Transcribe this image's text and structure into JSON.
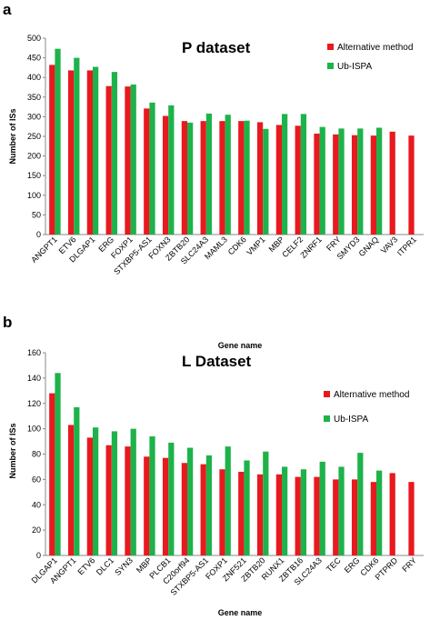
{
  "chart_data": [
    {
      "type": "bar",
      "panel_label": "a",
      "title": "P dataset",
      "xlabel": "Gene name",
      "ylabel": "Number of ISs",
      "ylim": [
        0,
        500
      ],
      "yticks": [
        0,
        50,
        100,
        150,
        200,
        250,
        300,
        350,
        400,
        450,
        500
      ],
      "legend_position": "top-right",
      "categories": [
        "ANGPT1",
        "ETV6",
        "DLGAP1",
        "ERG",
        "FOXP1",
        "STXBP5-AS1",
        "FOXN3",
        "ZBTB20",
        "SLC24A3",
        "MAML3",
        "CDK6",
        "VMP1",
        "MBP",
        "CELF2",
        "ZNRF1",
        "FRY",
        "SMYD3",
        "GNAQ",
        "VAV3",
        "ITPR1"
      ],
      "series": [
        {
          "name": "Alternative method",
          "color": "#e8191f",
          "values": [
            432,
            418,
            418,
            378,
            377,
            321,
            302,
            289,
            289,
            289,
            289,
            286,
            279,
            277,
            257,
            255,
            253,
            252,
            262,
            252
          ]
        },
        {
          "name": "Ub-ISPA",
          "color": "#1db34a",
          "values": [
            473,
            450,
            427,
            414,
            382,
            336,
            329,
            285,
            308,
            305,
            290,
            269,
            307,
            307,
            274,
            270,
            270,
            272,
            null,
            null
          ]
        }
      ]
    },
    {
      "type": "bar",
      "panel_label": "b",
      "title": "L Dataset",
      "xlabel": "Gene name",
      "ylabel": "Number of ISs",
      "ylim": [
        0,
        160
      ],
      "yticks": [
        0,
        20,
        40,
        60,
        80,
        100,
        120,
        140,
        160
      ],
      "legend_position": "top-right",
      "categories": [
        "DLGAP1",
        "ANGPT1",
        "ETV6",
        "DLC1",
        "SYN3",
        "MBP",
        "PLCB1",
        "C20orf94",
        "STXBP5-AS1",
        "FOXP1",
        "ZNF521",
        "ZBTB20",
        "RUNX1",
        "ZBTB16",
        "SLC24A3",
        "TEC",
        "ERG",
        "CDK6",
        "PTPRD",
        "FRY"
      ],
      "series": [
        {
          "name": "Alternative method",
          "color": "#e8191f",
          "values": [
            128,
            103,
            93,
            87,
            86,
            78,
            77,
            73,
            72,
            68,
            66,
            64,
            64,
            62,
            62,
            60,
            60,
            58,
            65,
            58
          ]
        },
        {
          "name": "Ub-ISPA",
          "color": "#1db34a",
          "values": [
            144,
            117,
            101,
            98,
            100,
            94,
            89,
            85,
            79,
            86,
            75,
            82,
            70,
            68,
            74,
            70,
            81,
            67,
            null,
            null
          ]
        }
      ]
    }
  ]
}
